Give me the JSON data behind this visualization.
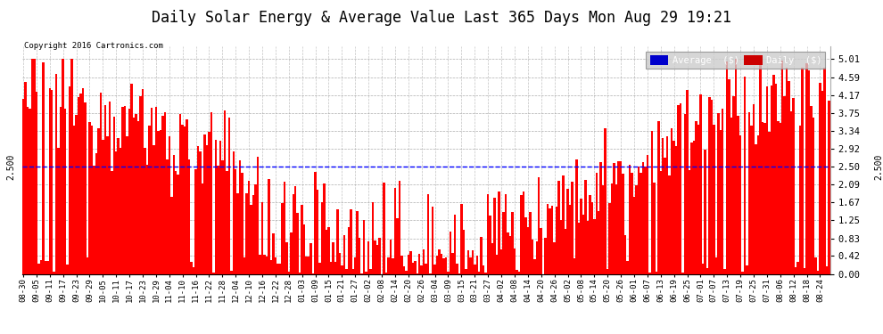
{
  "title": "Daily Solar Energy & Average Value Last 365 Days Mon Aug 29 19:21",
  "copyright": "Copyright 2016 Cartronics.com",
  "average_value": 2.5,
  "ylim": [
    0.0,
    5.3
  ],
  "yticks": [
    0.0,
    0.42,
    0.83,
    1.25,
    1.67,
    2.09,
    2.5,
    2.92,
    3.34,
    3.75,
    4.17,
    4.59,
    5.01
  ],
  "bar_color": "#ff0000",
  "average_line_color": "#0000ff",
  "background_color": "#ffffff",
  "grid_color": "#999999",
  "title_fontsize": 12,
  "legend_avg_color": "#0000cc",
  "legend_daily_color": "#cc0000",
  "xtick_labels": [
    "08-30",
    "09-05",
    "09-11",
    "09-17",
    "09-23",
    "09-29",
    "10-05",
    "10-11",
    "10-17",
    "10-23",
    "10-29",
    "11-04",
    "11-10",
    "11-16",
    "11-22",
    "11-28",
    "12-04",
    "12-10",
    "12-16",
    "12-22",
    "12-28",
    "01-03",
    "01-09",
    "01-15",
    "01-21",
    "01-27",
    "02-02",
    "02-08",
    "02-14",
    "02-20",
    "02-26",
    "03-04",
    "03-09",
    "03-15",
    "03-21",
    "03-27",
    "04-02",
    "04-08",
    "04-14",
    "04-20",
    "04-26",
    "05-02",
    "05-08",
    "05-14",
    "05-20",
    "05-26",
    "06-01",
    "06-07",
    "06-13",
    "06-19",
    "06-25",
    "07-01",
    "07-07",
    "07-13",
    "07-19",
    "07-25",
    "07-31",
    "08-06",
    "08-12",
    "08-18",
    "08-24"
  ],
  "xtick_step": 6
}
